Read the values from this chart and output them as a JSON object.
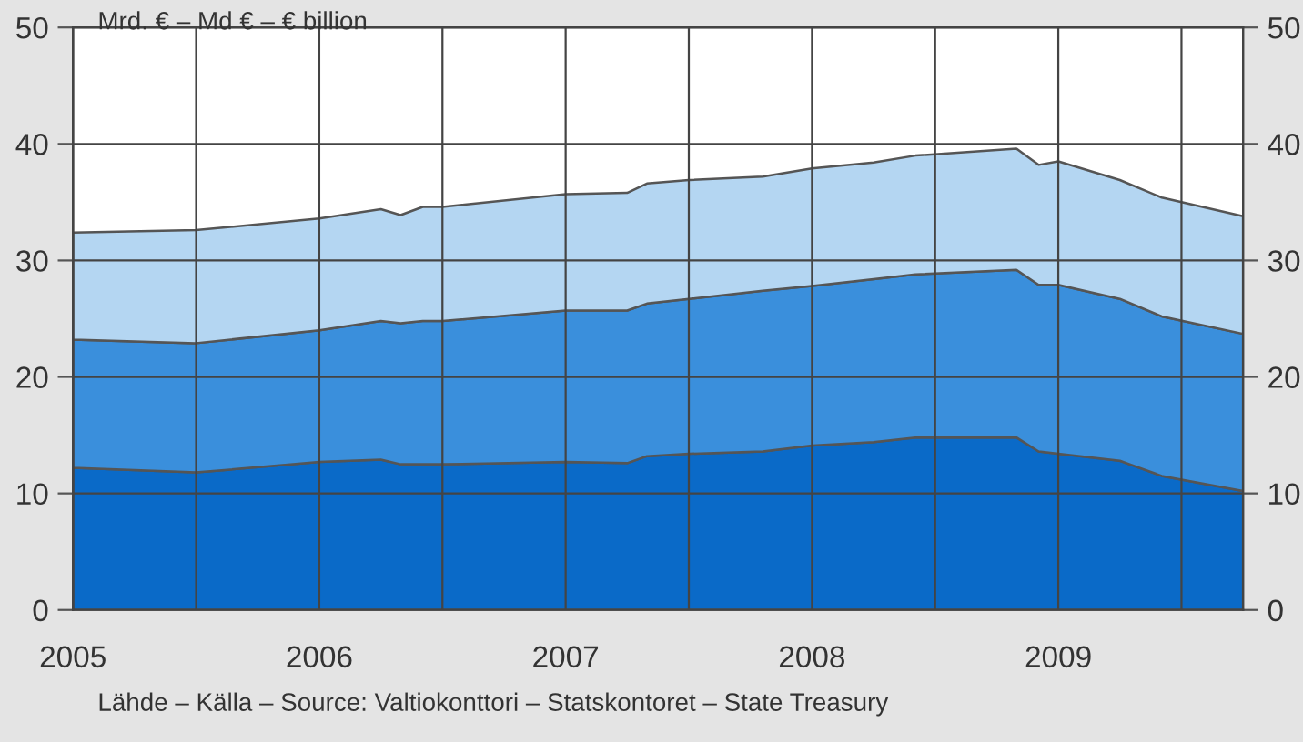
{
  "chart_data": {
    "type": "area",
    "stacked": true,
    "title": "Mrd. € – Md € – € billion",
    "x": [
      2005.0,
      2005.5,
      2006.0,
      2006.25,
      2006.33,
      2006.42,
      2006.5,
      2007.0,
      2007.25,
      2007.33,
      2007.5,
      2007.8,
      2008.0,
      2008.25,
      2008.42,
      2008.83,
      2008.92,
      2009.0,
      2009.25,
      2009.42,
      2009.75
    ],
    "series": [
      {
        "color": "#0a6ac8",
        "values": [
          12.2,
          11.8,
          12.7,
          12.9,
          12.5,
          12.5,
          12.5,
          12.7,
          12.6,
          13.2,
          13.4,
          13.6,
          14.1,
          14.4,
          14.8,
          14.8,
          13.6,
          13.4,
          12.8,
          11.5,
          10.2
        ]
      },
      {
        "color": "#3a8fdc",
        "values": [
          11.0,
          11.1,
          11.3,
          11.9,
          12.1,
          12.3,
          12.3,
          13.0,
          13.1,
          13.1,
          13.3,
          13.8,
          13.7,
          14.0,
          14.0,
          14.4,
          14.3,
          14.5,
          13.9,
          13.7,
          13.5
        ]
      },
      {
        "color": "#b4d6f2",
        "values": [
          9.2,
          9.7,
          9.6,
          9.6,
          9.3,
          9.8,
          9.8,
          10.0,
          10.1,
          10.3,
          10.2,
          9.8,
          10.1,
          10.0,
          10.2,
          10.4,
          10.3,
          10.6,
          10.2,
          10.2,
          10.1
        ]
      }
    ],
    "xlim": [
      2005.0,
      2009.75
    ],
    "xticks": [
      2005,
      {
        "value": 2005.5,
        "label": null
      },
      2006,
      {
        "value": 2006.5,
        "label": null
      },
      2007,
      {
        "value": 2007.5,
        "label": null
      },
      2008,
      {
        "value": 2008.5,
        "label": null
      },
      2009,
      {
        "value": 2009.5,
        "label": null
      }
    ],
    "ylim": [
      0,
      50
    ],
    "yticks": [
      0,
      10,
      20,
      30,
      40,
      50
    ],
    "y2lim": [
      0,
      50
    ],
    "y2ticks": [
      0,
      10,
      20,
      30,
      40,
      50
    ],
    "grid": true,
    "annotations": [
      "Lähde – Källa – Source: Valtiokonttori – Statskontoret – State Treasury"
    ]
  }
}
